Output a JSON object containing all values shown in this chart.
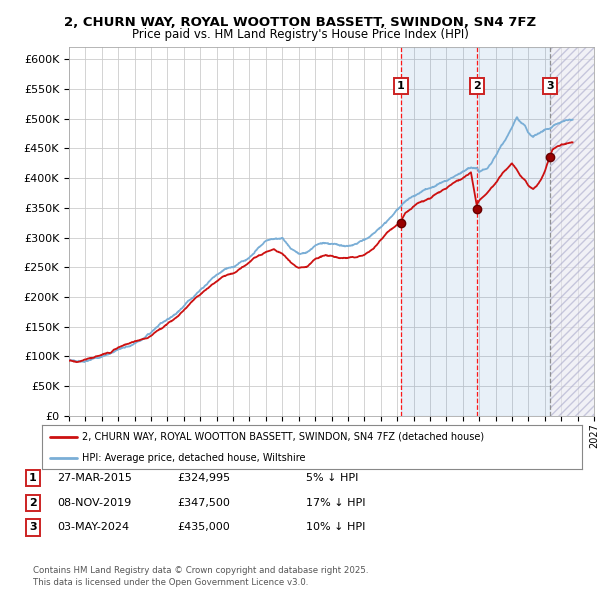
{
  "title_line1": "2, CHURN WAY, ROYAL WOOTTON BASSETT, SWINDON, SN4 7FZ",
  "title_line2": "Price paid vs. HM Land Registry's House Price Index (HPI)",
  "xlim_start": 1995,
  "xlim_end": 2027,
  "ylim_min": 0,
  "ylim_max": 620000,
  "yticks": [
    0,
    50000,
    100000,
    150000,
    200000,
    250000,
    300000,
    350000,
    400000,
    450000,
    500000,
    550000,
    600000
  ],
  "ytick_labels": [
    "£0",
    "£50K",
    "£100K",
    "£150K",
    "£200K",
    "£250K",
    "£300K",
    "£350K",
    "£400K",
    "£450K",
    "£500K",
    "£550K",
    "£600K"
  ],
  "hpi_color": "#7aaed6",
  "price_color": "#cc1111",
  "sale1_year": 2015.23,
  "sale1_price": 324995,
  "sale2_year": 2019.85,
  "sale2_price": 347500,
  "sale3_year": 2024.34,
  "sale3_price": 435000,
  "shade_blue_start": 2015.23,
  "shade_blue_end": 2024.34,
  "shade_hatch_start": 2024.34,
  "shade_hatch_end": 2027,
  "legend_price_label": "2, CHURN WAY, ROYAL WOOTTON BASSETT, SWINDON, SN4 7FZ (detached house)",
  "legend_hpi_label": "HPI: Average price, detached house, Wiltshire",
  "table_rows": [
    {
      "num": "1",
      "date": "27-MAR-2015",
      "price": "£324,995",
      "change": "5% ↓ HPI"
    },
    {
      "num": "2",
      "date": "08-NOV-2019",
      "price": "£347,500",
      "change": "17% ↓ HPI"
    },
    {
      "num": "3",
      "date": "03-MAY-2024",
      "price": "£435,000",
      "change": "10% ↓ HPI"
    }
  ],
  "footer": "Contains HM Land Registry data © Crown copyright and database right 2025.\nThis data is licensed under the Open Government Licence v3.0.",
  "hpi_anchors": [
    [
      1995.0,
      95000
    ],
    [
      1995.5,
      93000
    ],
    [
      1996.0,
      96000
    ],
    [
      1996.5,
      99000
    ],
    [
      1997.0,
      103000
    ],
    [
      1997.5,
      108000
    ],
    [
      1998.0,
      115000
    ],
    [
      1998.5,
      120000
    ],
    [
      1999.0,
      125000
    ],
    [
      1999.5,
      130000
    ],
    [
      2000.0,
      137000
    ],
    [
      2000.5,
      148000
    ],
    [
      2001.0,
      158000
    ],
    [
      2001.5,
      168000
    ],
    [
      2002.0,
      183000
    ],
    [
      2002.5,
      198000
    ],
    [
      2003.0,
      210000
    ],
    [
      2003.5,
      222000
    ],
    [
      2004.0,
      234000
    ],
    [
      2004.5,
      244000
    ],
    [
      2005.0,
      248000
    ],
    [
      2005.5,
      256000
    ],
    [
      2006.0,
      265000
    ],
    [
      2006.5,
      278000
    ],
    [
      2007.0,
      288000
    ],
    [
      2007.5,
      292000
    ],
    [
      2008.0,
      290000
    ],
    [
      2008.5,
      275000
    ],
    [
      2009.0,
      265000
    ],
    [
      2009.5,
      268000
    ],
    [
      2010.0,
      280000
    ],
    [
      2010.5,
      285000
    ],
    [
      2011.0,
      285000
    ],
    [
      2011.5,
      282000
    ],
    [
      2012.0,
      280000
    ],
    [
      2012.5,
      282000
    ],
    [
      2013.0,
      288000
    ],
    [
      2013.5,
      295000
    ],
    [
      2014.0,
      308000
    ],
    [
      2014.5,
      322000
    ],
    [
      2015.0,
      335000
    ],
    [
      2015.23,
      342000
    ],
    [
      2015.5,
      352000
    ],
    [
      2016.0,
      362000
    ],
    [
      2016.5,
      370000
    ],
    [
      2017.0,
      378000
    ],
    [
      2017.5,
      385000
    ],
    [
      2018.0,
      392000
    ],
    [
      2018.5,
      400000
    ],
    [
      2019.0,
      408000
    ],
    [
      2019.5,
      415000
    ],
    [
      2019.85,
      418000
    ],
    [
      2020.0,
      412000
    ],
    [
      2020.5,
      418000
    ],
    [
      2021.0,
      438000
    ],
    [
      2021.5,
      462000
    ],
    [
      2022.0,
      488000
    ],
    [
      2022.3,
      505000
    ],
    [
      2022.5,
      498000
    ],
    [
      2022.8,
      490000
    ],
    [
      2023.0,
      478000
    ],
    [
      2023.3,
      470000
    ],
    [
      2023.5,
      472000
    ],
    [
      2023.8,
      478000
    ],
    [
      2024.0,
      482000
    ],
    [
      2024.34,
      484000
    ],
    [
      2024.5,
      488000
    ],
    [
      2024.8,
      492000
    ],
    [
      2025.0,
      495000
    ],
    [
      2025.5,
      498000
    ]
  ],
  "prop_anchors": [
    [
      1995.0,
      93000
    ],
    [
      1995.5,
      91000
    ],
    [
      1996.0,
      94000
    ],
    [
      1996.5,
      97000
    ],
    [
      1997.0,
      101000
    ],
    [
      1997.5,
      106000
    ],
    [
      1998.0,
      113000
    ],
    [
      1998.5,
      119000
    ],
    [
      1999.0,
      124000
    ],
    [
      1999.5,
      129000
    ],
    [
      2000.0,
      135000
    ],
    [
      2000.5,
      146000
    ],
    [
      2001.0,
      155000
    ],
    [
      2001.5,
      165000
    ],
    [
      2002.0,
      178000
    ],
    [
      2002.5,
      192000
    ],
    [
      2003.0,
      204000
    ],
    [
      2003.5,
      215000
    ],
    [
      2004.0,
      226000
    ],
    [
      2004.5,
      236000
    ],
    [
      2005.0,
      240000
    ],
    [
      2005.5,
      248000
    ],
    [
      2006.0,
      258000
    ],
    [
      2006.5,
      270000
    ],
    [
      2007.0,
      278000
    ],
    [
      2007.5,
      282000
    ],
    [
      2008.0,
      275000
    ],
    [
      2008.5,
      262000
    ],
    [
      2009.0,
      252000
    ],
    [
      2009.5,
      255000
    ],
    [
      2010.0,
      268000
    ],
    [
      2010.5,
      272000
    ],
    [
      2011.0,
      270000
    ],
    [
      2011.5,
      266000
    ],
    [
      2012.0,
      264000
    ],
    [
      2012.5,
      267000
    ],
    [
      2013.0,
      272000
    ],
    [
      2013.5,
      280000
    ],
    [
      2014.0,
      293000
    ],
    [
      2014.5,
      308000
    ],
    [
      2015.0,
      318000
    ],
    [
      2015.23,
      324995
    ],
    [
      2015.5,
      338000
    ],
    [
      2016.0,
      348000
    ],
    [
      2016.5,
      356000
    ],
    [
      2017.0,
      362000
    ],
    [
      2017.5,
      372000
    ],
    [
      2018.0,
      378000
    ],
    [
      2018.5,
      388000
    ],
    [
      2019.0,
      395000
    ],
    [
      2019.5,
      402000
    ],
    [
      2019.85,
      347500
    ],
    [
      2020.0,
      355000
    ],
    [
      2020.5,
      365000
    ],
    [
      2021.0,
      382000
    ],
    [
      2021.5,
      402000
    ],
    [
      2022.0,
      418000
    ],
    [
      2022.3,
      408000
    ],
    [
      2022.5,
      398000
    ],
    [
      2022.8,
      392000
    ],
    [
      2023.0,
      382000
    ],
    [
      2023.3,
      375000
    ],
    [
      2023.5,
      380000
    ],
    [
      2023.8,
      392000
    ],
    [
      2024.0,
      405000
    ],
    [
      2024.34,
      435000
    ],
    [
      2024.5,
      445000
    ],
    [
      2024.8,
      452000
    ],
    [
      2025.0,
      456000
    ],
    [
      2025.5,
      460000
    ]
  ]
}
